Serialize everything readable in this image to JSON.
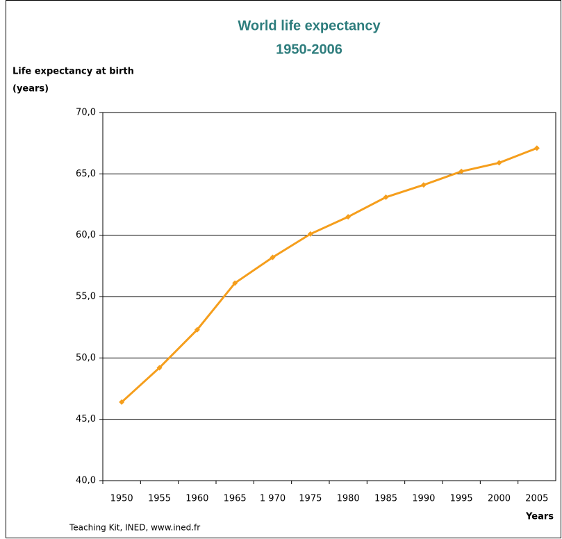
{
  "chart_data": {
    "type": "line",
    "title": "World life expectancy",
    "subtitle": "1950-2006",
    "y_label": [
      "Life expectancy at birth",
      "(years)"
    ],
    "x_label": "Years",
    "source": "Teaching Kit, INED,  www.ined.fr",
    "categories": [
      "1950",
      "1955",
      "1960",
      "1965",
      "1 970",
      "1975",
      "1980",
      "1985",
      "1990",
      "1995",
      "2000",
      "2005"
    ],
    "series": [
      {
        "name": "World life expectancy",
        "color": "#f59e1c",
        "values": [
          46.4,
          49.2,
          52.3,
          56.1,
          58.2,
          60.1,
          61.5,
          63.1,
          64.1,
          65.2,
          65.9,
          67.1
        ]
      }
    ],
    "ylim": [
      40,
      70
    ],
    "yticks": [
      {
        "value": 40,
        "label": "40,0"
      },
      {
        "value": 45,
        "label": "45,0"
      },
      {
        "value": 50,
        "label": "50,0"
      },
      {
        "value": 55,
        "label": "55,0"
      },
      {
        "value": 60,
        "label": "60,0"
      },
      {
        "value": 65,
        "label": "65,0"
      },
      {
        "value": 70,
        "label": "70,0"
      }
    ],
    "grid": true
  }
}
